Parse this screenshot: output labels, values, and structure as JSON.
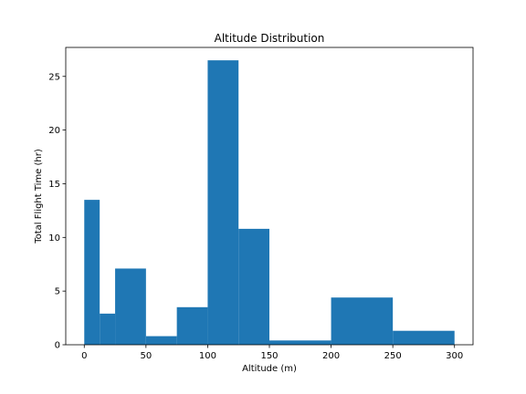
{
  "chart_data": {
    "type": "bar",
    "title": "Altitude Distribution",
    "xlabel": "Altitude (m)",
    "ylabel": "Total Flight Time (hr)",
    "xlim": [
      -15,
      315
    ],
    "ylim": [
      0,
      27.7
    ],
    "xticks": [
      0,
      50,
      100,
      150,
      200,
      250,
      300
    ],
    "yticks": [
      0,
      5,
      10,
      15,
      20,
      25
    ],
    "bar_color": "#1f77b4",
    "grid": false,
    "bins": [
      {
        "x0": 0,
        "x1": 12.5,
        "value": 13.5
      },
      {
        "x0": 12.5,
        "x1": 25,
        "value": 2.9
      },
      {
        "x0": 25,
        "x1": 50,
        "value": 7.1
      },
      {
        "x0": 50,
        "x1": 75,
        "value": 0.8
      },
      {
        "x0": 75,
        "x1": 100,
        "value": 3.5
      },
      {
        "x0": 100,
        "x1": 125,
        "value": 26.5
      },
      {
        "x0": 125,
        "x1": 150,
        "value": 10.8
      },
      {
        "x0": 150,
        "x1": 200,
        "value": 0.4
      },
      {
        "x0": 200,
        "x1": 250,
        "value": 4.4
      },
      {
        "x0": 250,
        "x1": 300,
        "value": 1.3
      }
    ]
  }
}
